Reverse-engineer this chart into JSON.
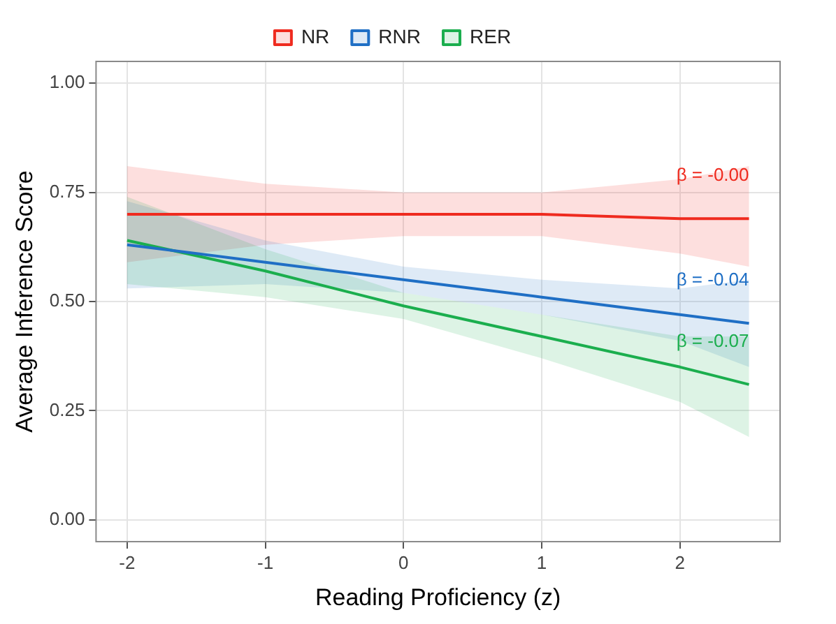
{
  "chart_data": {
    "type": "line",
    "xlabel": "Reading Proficiency (z)",
    "ylabel": "Average Inference Score",
    "xlim": [
      -2.225,
      2.725
    ],
    "xticks": [
      -2,
      -1,
      0,
      1,
      2
    ],
    "ylim": [
      -0.05,
      1.05
    ],
    "yticks": [
      {
        "value": 0,
        "label": "0.00"
      },
      {
        "value": 0.25,
        "label": "0.25"
      },
      {
        "value": 0.5,
        "label": "0.50"
      },
      {
        "value": 0.75,
        "label": "0.75"
      },
      {
        "value": 1,
        "label": "1.00"
      }
    ],
    "grid": true,
    "legend": "top",
    "marker": "none",
    "line_style": "solid",
    "series": [
      {
        "name": "NR",
        "color": "#ef2b1f",
        "x": [
          -2,
          -1,
          0,
          1,
          2,
          2.5
        ],
        "values": [
          0.7,
          0.7,
          0.7,
          0.7,
          0.69,
          0.69
        ],
        "lower": [
          0.59,
          0.63,
          0.65,
          0.65,
          0.61,
          0.58
        ],
        "upper": [
          0.81,
          0.77,
          0.75,
          0.75,
          0.78,
          0.81
        ]
      },
      {
        "name": "RNR",
        "color": "#1f6fc5",
        "x": [
          -2,
          -1,
          0,
          1,
          2,
          2.5
        ],
        "values": [
          0.63,
          0.59,
          0.55,
          0.51,
          0.47,
          0.45
        ],
        "lower": [
          0.53,
          0.54,
          0.52,
          0.47,
          0.41,
          0.35
        ],
        "upper": [
          0.73,
          0.64,
          0.58,
          0.55,
          0.53,
          0.55
        ]
      },
      {
        "name": "RER",
        "color": "#1bae4e",
        "x": [
          -2,
          -1,
          0,
          1,
          2,
          2.5
        ],
        "values": [
          0.64,
          0.57,
          0.49,
          0.42,
          0.35,
          0.31
        ],
        "lower": [
          0.54,
          0.51,
          0.46,
          0.37,
          0.27,
          0.19
        ],
        "upper": [
          0.74,
          0.62,
          0.52,
          0.47,
          0.42,
          0.42
        ]
      }
    ],
    "annotations": [
      "β = -0.00",
      "β = -0.04",
      "β = -0.07"
    ]
  }
}
